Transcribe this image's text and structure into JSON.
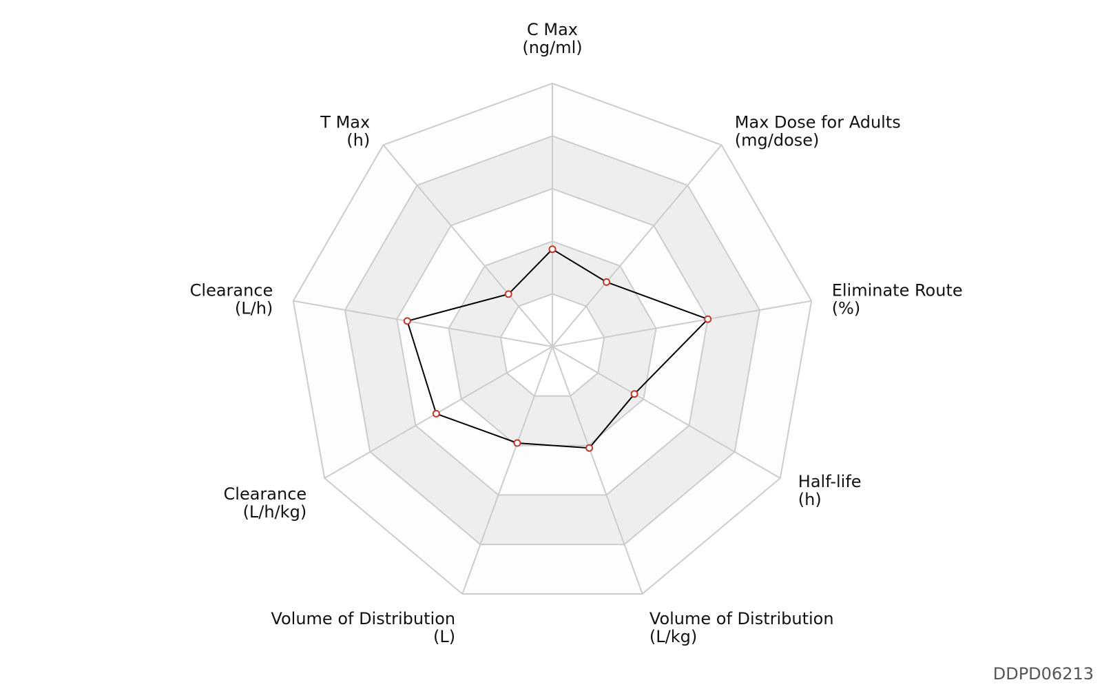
{
  "chart_data": {
    "type": "radar",
    "axes": [
      {
        "name": "C Max",
        "unit": "(ng/ml)"
      },
      {
        "name": "Max Dose for Adults",
        "unit": "(mg/dose)"
      },
      {
        "name": "Eliminate Route",
        "unit": "(%)"
      },
      {
        "name": "Half-life",
        "unit": "(h)"
      },
      {
        "name": "Volume of Distribution",
        "unit": "(L/kg)"
      },
      {
        "name": "Volume of Distribution",
        "unit": "(L)"
      },
      {
        "name": "Clearance",
        "unit": "(L/h/kg)"
      },
      {
        "name": "Clearance",
        "unit": "(L/h)"
      },
      {
        "name": "T Max",
        "unit": "(h)"
      }
    ],
    "values": [
      0.37,
      0.32,
      0.6,
      0.36,
      0.41,
      0.39,
      0.51,
      0.56,
      0.26
    ],
    "range": [
      0,
      1
    ],
    "rings": 5,
    "ring_fills": [
      "#ffffff",
      "#eeeeee",
      "#fdfdfd",
      "#eeeeee",
      "#fdfdfd"
    ],
    "grid_color": "#cccccc",
    "line_color": "#000000",
    "marker_color": "#c0392b"
  },
  "watermark": "DDPD06213"
}
